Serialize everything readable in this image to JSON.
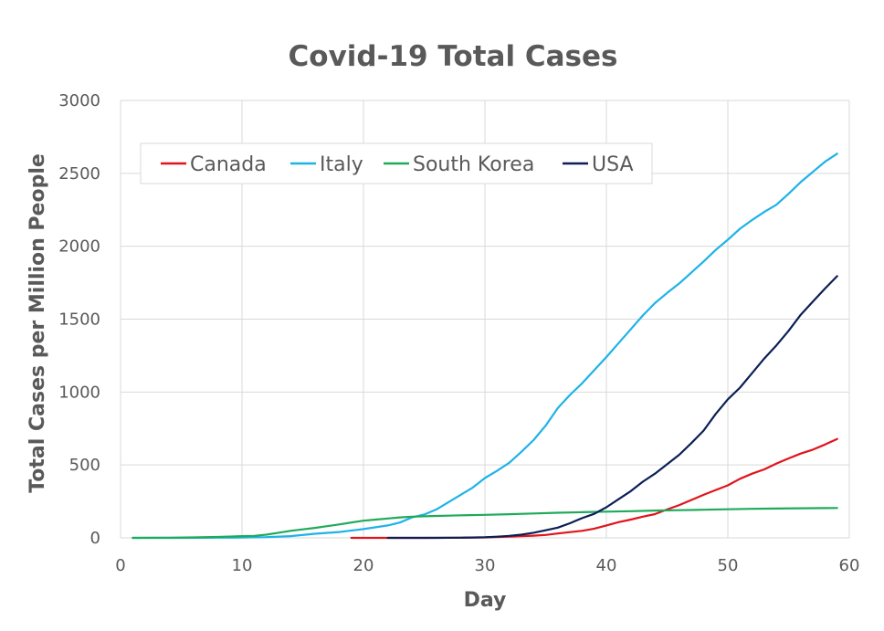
{
  "chart_data": {
    "type": "line",
    "title": "Covid-19 Total Cases",
    "xlabel": "Day",
    "ylabel": "Total Cases per Million People",
    "xlim": [
      0,
      60
    ],
    "ylim": [
      0,
      3000
    ],
    "xticks": [
      0,
      10,
      20,
      30,
      40,
      50,
      60
    ],
    "yticks": [
      0,
      500,
      1000,
      1500,
      2000,
      2500,
      3000
    ],
    "grid": true,
    "legend_position": "top-left-inside",
    "series": [
      {
        "name": "Canada",
        "color": "#e0141b",
        "points": [
          [
            19,
            0
          ],
          [
            22,
            0
          ],
          [
            25,
            0
          ],
          [
            28,
            1
          ],
          [
            30,
            3
          ],
          [
            32,
            8
          ],
          [
            34,
            15
          ],
          [
            35,
            20
          ],
          [
            36,
            30
          ],
          [
            38,
            48
          ],
          [
            39,
            63
          ],
          [
            40,
            85
          ],
          [
            41,
            108
          ],
          [
            42,
            125
          ],
          [
            43,
            145
          ],
          [
            44,
            163
          ],
          [
            45,
            195
          ],
          [
            46,
            225
          ],
          [
            47,
            260
          ],
          [
            48,
            295
          ],
          [
            49,
            328
          ],
          [
            50,
            360
          ],
          [
            51,
            405
          ],
          [
            52,
            440
          ],
          [
            53,
            470
          ],
          [
            54,
            510
          ],
          [
            55,
            545
          ],
          [
            56,
            578
          ],
          [
            57,
            605
          ],
          [
            58,
            640
          ],
          [
            59,
            678
          ]
        ]
      },
      {
        "name": "Italy",
        "color": "#1fb2e8",
        "points": [
          [
            1,
            0
          ],
          [
            5,
            0
          ],
          [
            8,
            1
          ],
          [
            10,
            2
          ],
          [
            12,
            5
          ],
          [
            14,
            12
          ],
          [
            16,
            28
          ],
          [
            18,
            40
          ],
          [
            20,
            60
          ],
          [
            22,
            85
          ],
          [
            23,
            105
          ],
          [
            24,
            140
          ],
          [
            25,
            160
          ],
          [
            26,
            195
          ],
          [
            27,
            245
          ],
          [
            28,
            295
          ],
          [
            29,
            345
          ],
          [
            30,
            410
          ],
          [
            31,
            460
          ],
          [
            32,
            515
          ],
          [
            33,
            590
          ],
          [
            34,
            670
          ],
          [
            35,
            770
          ],
          [
            36,
            890
          ],
          [
            37,
            980
          ],
          [
            38,
            1060
          ],
          [
            39,
            1150
          ],
          [
            40,
            1240
          ],
          [
            41,
            1335
          ],
          [
            42,
            1430
          ],
          [
            43,
            1525
          ],
          [
            44,
            1610
          ],
          [
            45,
            1680
          ],
          [
            46,
            1745
          ],
          [
            47,
            1820
          ],
          [
            48,
            1895
          ],
          [
            49,
            1975
          ],
          [
            50,
            2045
          ],
          [
            51,
            2120
          ],
          [
            52,
            2180
          ],
          [
            53,
            2235
          ],
          [
            54,
            2285
          ],
          [
            55,
            2360
          ],
          [
            56,
            2440
          ],
          [
            57,
            2510
          ],
          [
            58,
            2580
          ],
          [
            59,
            2635
          ]
        ]
      },
      {
        "name": "South Korea",
        "color": "#1faa5a",
        "points": [
          [
            1,
            0
          ],
          [
            4,
            1
          ],
          [
            6,
            3
          ],
          [
            8,
            6
          ],
          [
            10,
            12
          ],
          [
            11,
            14
          ],
          [
            12,
            22
          ],
          [
            13,
            35
          ],
          [
            14,
            48
          ],
          [
            15,
            58
          ],
          [
            16,
            68
          ],
          [
            17,
            80
          ],
          [
            18,
            92
          ],
          [
            19,
            105
          ],
          [
            20,
            118
          ],
          [
            21,
            125
          ],
          [
            22,
            133
          ],
          [
            23,
            140
          ],
          [
            24,
            145
          ],
          [
            25,
            148
          ],
          [
            26,
            150
          ],
          [
            27,
            152
          ],
          [
            28,
            155
          ],
          [
            30,
            158
          ],
          [
            32,
            162
          ],
          [
            34,
            167
          ],
          [
            36,
            172
          ],
          [
            38,
            176
          ],
          [
            40,
            180
          ],
          [
            42,
            183
          ],
          [
            44,
            187
          ],
          [
            46,
            190
          ],
          [
            48,
            193
          ],
          [
            50,
            196
          ],
          [
            52,
            199
          ],
          [
            54,
            201
          ],
          [
            56,
            203
          ],
          [
            58,
            204
          ],
          [
            59,
            205
          ]
        ]
      },
      {
        "name": "USA",
        "color": "#0b1f55",
        "points": [
          [
            22,
            0
          ],
          [
            26,
            0
          ],
          [
            28,
            1
          ],
          [
            30,
            4
          ],
          [
            31,
            8
          ],
          [
            32,
            14
          ],
          [
            33,
            22
          ],
          [
            34,
            35
          ],
          [
            35,
            52
          ],
          [
            36,
            70
          ],
          [
            37,
            100
          ],
          [
            38,
            135
          ],
          [
            39,
            165
          ],
          [
            40,
            210
          ],
          [
            41,
            265
          ],
          [
            42,
            320
          ],
          [
            43,
            385
          ],
          [
            44,
            440
          ],
          [
            45,
            505
          ],
          [
            46,
            570
          ],
          [
            47,
            650
          ],
          [
            48,
            735
          ],
          [
            49,
            850
          ],
          [
            50,
            950
          ],
          [
            51,
            1030
          ],
          [
            52,
            1130
          ],
          [
            53,
            1230
          ],
          [
            54,
            1320
          ],
          [
            55,
            1420
          ],
          [
            56,
            1530
          ],
          [
            57,
            1620
          ],
          [
            58,
            1710
          ],
          [
            59,
            1795
          ]
        ]
      }
    ]
  }
}
